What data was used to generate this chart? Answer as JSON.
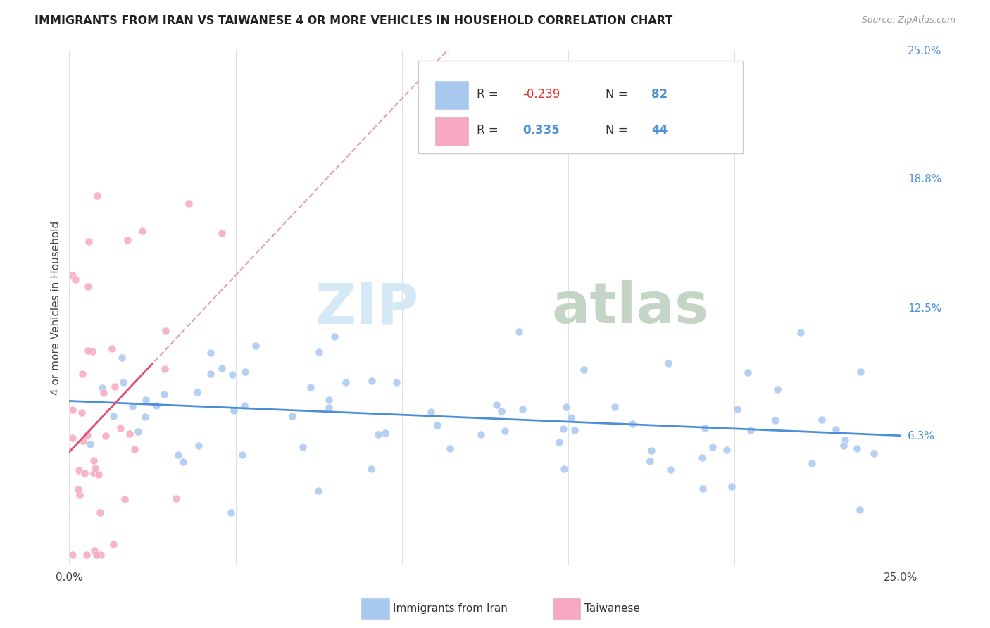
{
  "title": "IMMIGRANTS FROM IRAN VS TAIWANESE 4 OR MORE VEHICLES IN HOUSEHOLD CORRELATION CHART",
  "source": "Source: ZipAtlas.com",
  "ylabel": "4 or more Vehicles in Household",
  "legend_label1": "Immigrants from Iran",
  "legend_label2": "Taiwanese",
  "R1": -0.239,
  "N1": 82,
  "R2": 0.335,
  "N2": 44,
  "xlim": [
    0.0,
    0.25
  ],
  "ylim": [
    0.0,
    0.25
  ],
  "color_iran": "#a8c8f0",
  "color_taiwan": "#f5a8c0",
  "color_line_iran": "#4a90d9",
  "color_line_taiwan": "#e05070",
  "color_line_taiwan_dashed": "#e0a0b0",
  "watermark_zip_color": "#d5e8f5",
  "watermark_atlas_color": "#c5d5c5"
}
